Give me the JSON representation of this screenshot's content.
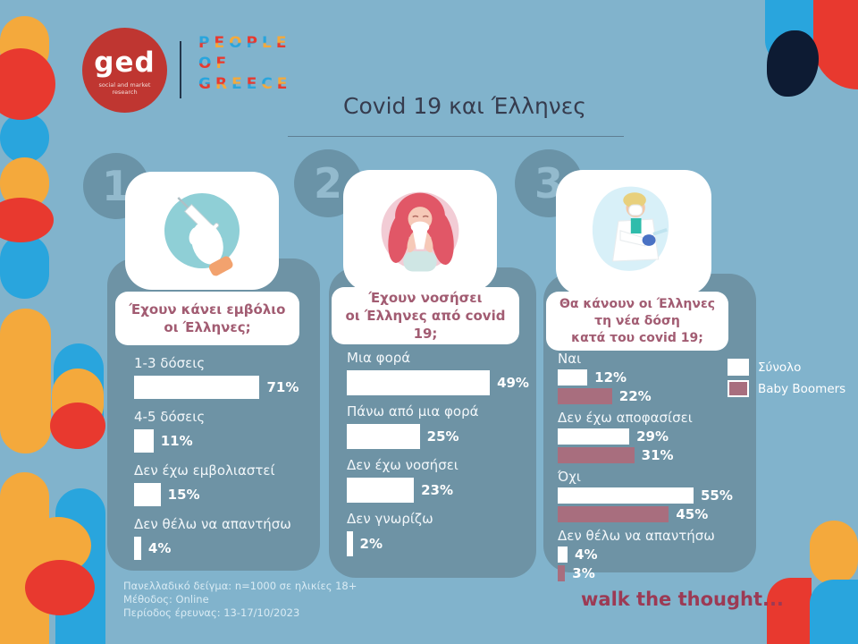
{
  "palette": {
    "background": "#81b3cc",
    "panel": "#6e93a5",
    "accent_red": "#e8392f",
    "accent_orange": "#f4a93c",
    "accent_blue": "#29a5dd",
    "navy": "#0d1b33",
    "maroon_bar": "#a86e7e",
    "question_text": "#a25c72",
    "tagline_text": "#9c3a54",
    "logo_red": "#bf3631",
    "bar_white": "#ffffff"
  },
  "header": {
    "logo": {
      "monogram": "ged",
      "caption": "social and market research"
    },
    "wordmark": {
      "lines": [
        "PEOPLE",
        "OF",
        "GREECE"
      ]
    },
    "title": "Covid 19 και Έλληνες"
  },
  "sections": [
    {
      "number": "1",
      "question_lines": [
        "Έχουν κάνει εμβόλιο",
        "οι Έλληνες;"
      ],
      "illustration": "gloved-hand-with-syringe"
    },
    {
      "number": "2",
      "question_lines": [
        "Έχουν νοσήσει",
        "οι Έλληνες από covid 19;"
      ],
      "illustration": "woman-blowing-nose"
    },
    {
      "number": "3",
      "question_lines": [
        "Θα κάνουν οι Έλληνες",
        "τη νέα δόση",
        "κατά του covid 19;"
      ],
      "illustration": "doctor-with-syringe"
    }
  ],
  "chart_data": [
    {
      "type": "bar",
      "title": "Έχουν κάνει εμβόλιο οι Έλληνες;",
      "categories": [
        "1-3 δόσεις",
        "4-5 δόσεις",
        "Δεν έχω εμβολιαστεί",
        "Δεν θέλω να απαντήσω"
      ],
      "values": [
        71,
        11,
        15,
        4
      ],
      "bar_color": "#ffffff",
      "value_suffix": "%",
      "orientation": "horizontal",
      "xlim": [
        0,
        93
      ]
    },
    {
      "type": "bar",
      "title": "Έχουν νοσήσει οι Έλληνες από covid 19;",
      "categories": [
        "Μια φορά",
        "Πάνω από μια φορά",
        "Δεν έχω νοσήσει",
        "Δεν γνωρίζω"
      ],
      "values": [
        49,
        25,
        23,
        2
      ],
      "bar_color": "#ffffff",
      "value_suffix": "%",
      "orientation": "horizontal",
      "xlim": [
        0,
        60
      ]
    },
    {
      "type": "bar",
      "title": "Θα κάνουν οι Έλληνες τη νέα δόση κατά του covid 19;",
      "categories": [
        "Ναι",
        "Δεν έχω αποφασίσει",
        "Όχι",
        "Δεν θέλω να απαντήσω"
      ],
      "series": [
        {
          "name": "Σύνολο",
          "color": "#ffffff",
          "values": [
            12,
            29,
            55,
            4
          ]
        },
        {
          "name": "Baby Boomers",
          "color": "#a86e7e",
          "values": [
            22,
            31,
            45,
            3
          ]
        }
      ],
      "value_suffix": "%",
      "orientation": "horizontal",
      "legend_position": "right",
      "xlim": [
        0,
        76
      ]
    }
  ],
  "legend": {
    "items": [
      {
        "label": "Σύνολο",
        "color": "#ffffff"
      },
      {
        "label": "Baby Boomers",
        "color": "#a86e7e"
      }
    ]
  },
  "footer": {
    "lines": [
      "Πανελλαδικό δείγμα: n=1000 σε ηλικίες 18+",
      "Μέθοδος: Online",
      "Περίοδος έρευνας: 13-17/10/2023"
    ]
  },
  "tagline": "walk the thought..."
}
